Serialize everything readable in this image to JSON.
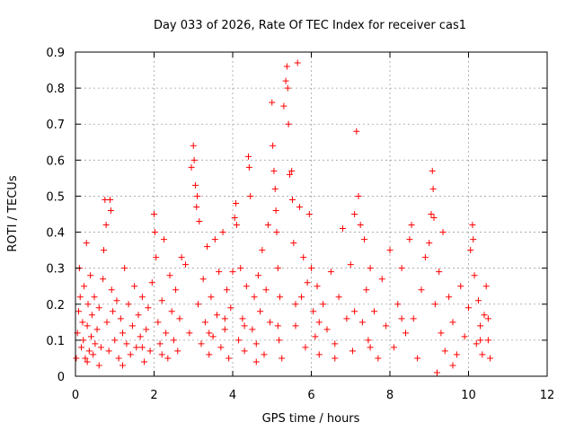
{
  "chart_data": {
    "type": "scatter",
    "title": "Day 033 of 2026, Rate Of TEC Index for receiver cas1",
    "xlabel": "GPS time / hours",
    "ylabel": "ROTI / TECUs",
    "xlim": [
      0,
      12
    ],
    "ylim": [
      0,
      0.9
    ],
    "xticks": [
      "0",
      "2",
      "4",
      "6",
      "8",
      "10",
      "12"
    ],
    "yticks": [
      "0",
      "0.1",
      "0.2",
      "0.3",
      "0.4",
      "0.5",
      "0.6",
      "0.7",
      "0.8",
      "0.9"
    ],
    "grid": true,
    "marker": "+",
    "marker_color": "#ff0000",
    "points": [
      [
        0.02,
        0.05
      ],
      [
        0.05,
        0.12
      ],
      [
        0.08,
        0.18
      ],
      [
        0.1,
        0.3
      ],
      [
        0.12,
        0.22
      ],
      [
        0.15,
        0.08
      ],
      [
        0.18,
        0.15
      ],
      [
        0.2,
        0.1
      ],
      [
        0.22,
        0.25
      ],
      [
        0.25,
        0.05
      ],
      [
        0.28,
        0.37
      ],
      [
        0.3,
        0.14
      ],
      [
        0.32,
        0.2
      ],
      [
        0.35,
        0.07
      ],
      [
        0.38,
        0.28
      ],
      [
        0.4,
        0.11
      ],
      [
        0.42,
        0.17
      ],
      [
        0.45,
        0.06
      ],
      [
        0.48,
        0.22
      ],
      [
        0.5,
        0.09
      ],
      [
        0.55,
        0.13
      ],
      [
        0.6,
        0.19
      ],
      [
        0.65,
        0.08
      ],
      [
        0.7,
        0.27
      ],
      [
        0.72,
        0.35
      ],
      [
        0.75,
        0.49
      ],
      [
        0.78,
        0.42
      ],
      [
        0.8,
        0.15
      ],
      [
        0.85,
        0.07
      ],
      [
        0.88,
        0.49
      ],
      [
        0.9,
        0.46
      ],
      [
        0.92,
        0.24
      ],
      [
        0.95,
        0.18
      ],
      [
        1.0,
        0.1
      ],
      [
        1.05,
        0.21
      ],
      [
        1.1,
        0.05
      ],
      [
        1.15,
        0.16
      ],
      [
        1.2,
        0.12
      ],
      [
        1.25,
        0.3
      ],
      [
        1.3,
        0.09
      ],
      [
        1.35,
        0.2
      ],
      [
        1.4,
        0.06
      ],
      [
        1.45,
        0.14
      ],
      [
        1.5,
        0.25
      ],
      [
        1.55,
        0.08
      ],
      [
        1.6,
        0.17
      ],
      [
        1.65,
        0.11
      ],
      [
        1.7,
        0.22
      ],
      [
        1.75,
        0.04
      ],
      [
        1.8,
        0.13
      ],
      [
        1.85,
        0.19
      ],
      [
        1.9,
        0.07
      ],
      [
        1.95,
        0.26
      ],
      [
        2.0,
        0.45
      ],
      [
        2.02,
        0.4
      ],
      [
        2.05,
        0.33
      ],
      [
        2.1,
        0.15
      ],
      [
        2.15,
        0.09
      ],
      [
        2.2,
        0.21
      ],
      [
        2.25,
        0.38
      ],
      [
        2.3,
        0.12
      ],
      [
        2.35,
        0.05
      ],
      [
        2.4,
        0.28
      ],
      [
        2.45,
        0.18
      ],
      [
        2.5,
        0.1
      ],
      [
        2.55,
        0.24
      ],
      [
        2.6,
        0.07
      ],
      [
        2.65,
        0.16
      ],
      [
        2.7,
        0.33
      ],
      [
        2.8,
        0.31
      ],
      [
        2.9,
        0.12
      ],
      [
        2.95,
        0.58
      ],
      [
        3.0,
        0.64
      ],
      [
        3.02,
        0.6
      ],
      [
        3.05,
        0.53
      ],
      [
        3.08,
        0.47
      ],
      [
        3.1,
        0.5
      ],
      [
        3.12,
        0.2
      ],
      [
        3.15,
        0.43
      ],
      [
        3.2,
        0.09
      ],
      [
        3.25,
        0.27
      ],
      [
        3.3,
        0.15
      ],
      [
        3.35,
        0.36
      ],
      [
        3.4,
        0.06
      ],
      [
        3.45,
        0.22
      ],
      [
        3.5,
        0.11
      ],
      [
        3.55,
        0.38
      ],
      [
        3.6,
        0.17
      ],
      [
        3.65,
        0.29
      ],
      [
        3.7,
        0.08
      ],
      [
        3.75,
        0.4
      ],
      [
        3.8,
        0.13
      ],
      [
        3.85,
        0.24
      ],
      [
        3.9,
        0.05
      ],
      [
        3.95,
        0.19
      ],
      [
        4.0,
        0.29
      ],
      [
        4.05,
        0.44
      ],
      [
        4.08,
        0.48
      ],
      [
        4.1,
        0.42
      ],
      [
        4.15,
        0.1
      ],
      [
        4.2,
        0.3
      ],
      [
        4.25,
        0.16
      ],
      [
        4.3,
        0.07
      ],
      [
        4.35,
        0.25
      ],
      [
        4.4,
        0.61
      ],
      [
        4.42,
        0.58
      ],
      [
        4.45,
        0.5
      ],
      [
        4.5,
        0.13
      ],
      [
        4.55,
        0.22
      ],
      [
        4.6,
        0.09
      ],
      [
        4.65,
        0.28
      ],
      [
        4.7,
        0.18
      ],
      [
        4.75,
        0.35
      ],
      [
        4.8,
        0.06
      ],
      [
        4.85,
        0.24
      ],
      [
        4.9,
        0.42
      ],
      [
        4.95,
        0.15
      ],
      [
        5.0,
        0.76
      ],
      [
        5.02,
        0.64
      ],
      [
        5.05,
        0.57
      ],
      [
        5.08,
        0.52
      ],
      [
        5.1,
        0.46
      ],
      [
        5.12,
        0.4
      ],
      [
        5.15,
        0.3
      ],
      [
        5.18,
        0.1
      ],
      [
        5.2,
        0.22
      ],
      [
        5.25,
        0.05
      ],
      [
        5.3,
        0.75
      ],
      [
        5.35,
        0.82
      ],
      [
        5.38,
        0.86
      ],
      [
        5.4,
        0.8
      ],
      [
        5.42,
        0.7
      ],
      [
        5.45,
        0.56
      ],
      [
        5.5,
        0.57
      ],
      [
        5.52,
        0.49
      ],
      [
        5.55,
        0.37
      ],
      [
        5.6,
        0.14
      ],
      [
        5.65,
        0.87
      ],
      [
        5.7,
        0.47
      ],
      [
        5.75,
        0.22
      ],
      [
        5.8,
        0.33
      ],
      [
        5.85,
        0.08
      ],
      [
        5.9,
        0.26
      ],
      [
        5.95,
        0.45
      ],
      [
        6.0,
        0.3
      ],
      [
        6.05,
        0.18
      ],
      [
        6.1,
        0.11
      ],
      [
        6.15,
        0.25
      ],
      [
        6.2,
        0.06
      ],
      [
        6.3,
        0.2
      ],
      [
        6.4,
        0.13
      ],
      [
        6.5,
        0.29
      ],
      [
        6.6,
        0.09
      ],
      [
        6.7,
        0.22
      ],
      [
        6.8,
        0.41
      ],
      [
        6.9,
        0.16
      ],
      [
        7.0,
        0.31
      ],
      [
        7.05,
        0.07
      ],
      [
        7.1,
        0.45
      ],
      [
        7.15,
        0.68
      ],
      [
        7.2,
        0.5
      ],
      [
        7.25,
        0.42
      ],
      [
        7.3,
        0.15
      ],
      [
        7.35,
        0.38
      ],
      [
        7.4,
        0.24
      ],
      [
        7.45,
        0.1
      ],
      [
        7.5,
        0.3
      ],
      [
        7.6,
        0.18
      ],
      [
        7.7,
        0.05
      ],
      [
        7.8,
        0.27
      ],
      [
        7.9,
        0.14
      ],
      [
        8.0,
        0.35
      ],
      [
        8.1,
        0.08
      ],
      [
        8.2,
        0.2
      ],
      [
        8.3,
        0.3
      ],
      [
        8.4,
        0.12
      ],
      [
        8.5,
        0.38
      ],
      [
        8.55,
        0.42
      ],
      [
        8.6,
        0.16
      ],
      [
        8.7,
        0.05
      ],
      [
        8.8,
        0.24
      ],
      [
        8.9,
        0.33
      ],
      [
        9.0,
        0.37
      ],
      [
        9.05,
        0.45
      ],
      [
        9.08,
        0.57
      ],
      [
        9.1,
        0.52
      ],
      [
        9.12,
        0.44
      ],
      [
        9.15,
        0.2
      ],
      [
        9.2,
        0.01
      ],
      [
        9.25,
        0.29
      ],
      [
        9.3,
        0.12
      ],
      [
        9.35,
        0.4
      ],
      [
        9.4,
        0.07
      ],
      [
        9.5,
        0.22
      ],
      [
        9.6,
        0.15
      ],
      [
        9.7,
        0.06
      ],
      [
        9.8,
        0.25
      ],
      [
        9.9,
        0.11
      ],
      [
        10.0,
        0.19
      ],
      [
        10.05,
        0.35
      ],
      [
        10.1,
        0.42
      ],
      [
        10.12,
        0.38
      ],
      [
        10.15,
        0.28
      ],
      [
        10.2,
        0.09
      ],
      [
        10.25,
        0.21
      ],
      [
        10.3,
        0.14
      ],
      [
        10.35,
        0.06
      ],
      [
        10.4,
        0.17
      ],
      [
        10.45,
        0.25
      ],
      [
        10.5,
        0.1
      ],
      [
        10.55,
        0.05
      ],
      [
        0.3,
        0.04
      ],
      [
        0.6,
        0.03
      ],
      [
        1.2,
        0.03
      ],
      [
        1.7,
        0.08
      ],
      [
        2.2,
        0.06
      ],
      [
        3.4,
        0.12
      ],
      [
        3.8,
        0.16
      ],
      [
        4.3,
        0.14
      ],
      [
        4.6,
        0.04
      ],
      [
        5.15,
        0.14
      ],
      [
        5.6,
        0.2
      ],
      [
        6.2,
        0.15
      ],
      [
        6.6,
        0.05
      ],
      [
        7.1,
        0.18
      ],
      [
        7.5,
        0.08
      ],
      [
        8.3,
        0.16
      ],
      [
        9.6,
        0.03
      ],
      [
        10.3,
        0.1
      ],
      [
        10.5,
        0.16
      ]
    ]
  }
}
